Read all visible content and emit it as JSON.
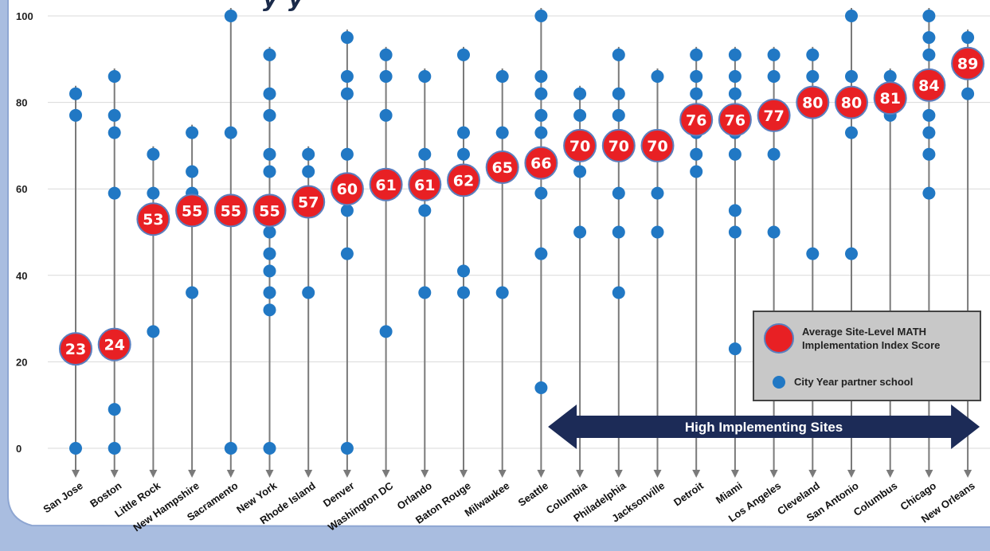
{
  "chart_data": {
    "type": "scatter",
    "title_fragment": "y y",
    "ylim": [
      0,
      100
    ],
    "yticks": [
      "0",
      "20",
      "40",
      "60",
      "80",
      "100"
    ],
    "grid": true,
    "categories": [
      "San Jose",
      "Boston",
      "Little Rock",
      "New Hampshire",
      "Sacramento",
      "New York",
      "Rhode Island",
      "Denver",
      "Washington DC",
      "Orlando",
      "Baton Rouge",
      "Milwaukee",
      "Seattle",
      "Columbia",
      "Philadelphia",
      "Jacksonville",
      "Detroit",
      "Miami",
      "Los Angeles",
      "Cleveland",
      "San Antonio",
      "Columbus",
      "Chicago",
      "New Orleans"
    ],
    "series": [
      {
        "name": "Average Site-Level MATH Implementation Index Score",
        "values": [
          23,
          24,
          53,
          55,
          55,
          55,
          57,
          60,
          61,
          61,
          62,
          65,
          66,
          70,
          70,
          70,
          76,
          76,
          77,
          80,
          80,
          81,
          84,
          89
        ],
        "labels": [
          "23",
          "24",
          "53",
          "55",
          "55",
          "55",
          "57",
          "60",
          "61",
          "61",
          "62",
          "65",
          "66",
          "70",
          "70",
          "70",
          "76",
          "76",
          "77",
          "80",
          "80",
          "81",
          "84",
          "89"
        ]
      },
      {
        "name": "City Year partner school",
        "points": [
          [
            0,
            82
          ],
          [
            0,
            77
          ],
          [
            0,
            0
          ],
          [
            1,
            86
          ],
          [
            1,
            77
          ],
          [
            1,
            73
          ],
          [
            1,
            59
          ],
          [
            1,
            9
          ],
          [
            1,
            0
          ],
          [
            2,
            68
          ],
          [
            2,
            59
          ],
          [
            2,
            27
          ],
          [
            3,
            73
          ],
          [
            3,
            64
          ],
          [
            3,
            59
          ],
          [
            3,
            36
          ],
          [
            4,
            100
          ],
          [
            4,
            73
          ],
          [
            4,
            0
          ],
          [
            5,
            91
          ],
          [
            5,
            82
          ],
          [
            5,
            77
          ],
          [
            5,
            68
          ],
          [
            5,
            64
          ],
          [
            5,
            50
          ],
          [
            5,
            45
          ],
          [
            5,
            41
          ],
          [
            5,
            36
          ],
          [
            5,
            32
          ],
          [
            5,
            0
          ],
          [
            6,
            68
          ],
          [
            6,
            64
          ],
          [
            6,
            36
          ],
          [
            7,
            95
          ],
          [
            7,
            86
          ],
          [
            7,
            82
          ],
          [
            7,
            68
          ],
          [
            7,
            55
          ],
          [
            7,
            45
          ],
          [
            7,
            0
          ],
          [
            8,
            91
          ],
          [
            8,
            86
          ],
          [
            8,
            77
          ],
          [
            8,
            27
          ],
          [
            9,
            86
          ],
          [
            9,
            68
          ],
          [
            9,
            55
          ],
          [
            9,
            36
          ],
          [
            10,
            91
          ],
          [
            10,
            73
          ],
          [
            10,
            68
          ],
          [
            10,
            41
          ],
          [
            10,
            36
          ],
          [
            11,
            86
          ],
          [
            11,
            73
          ],
          [
            11,
            36
          ],
          [
            12,
            100
          ],
          [
            12,
            86
          ],
          [
            12,
            82
          ],
          [
            12,
            77
          ],
          [
            12,
            73
          ],
          [
            12,
            59
          ],
          [
            12,
            45
          ],
          [
            12,
            14
          ],
          [
            13,
            82
          ],
          [
            13,
            77
          ],
          [
            13,
            64
          ],
          [
            13,
            50
          ],
          [
            14,
            91
          ],
          [
            14,
            82
          ],
          [
            14,
            77
          ],
          [
            14,
            59
          ],
          [
            14,
            50
          ],
          [
            14,
            36
          ],
          [
            15,
            86
          ],
          [
            15,
            59
          ],
          [
            15,
            50
          ],
          [
            16,
            91
          ],
          [
            16,
            86
          ],
          [
            16,
            82
          ],
          [
            16,
            73
          ],
          [
            16,
            68
          ],
          [
            16,
            64
          ],
          [
            17,
            91
          ],
          [
            17,
            86
          ],
          [
            17,
            82
          ],
          [
            17,
            73
          ],
          [
            17,
            68
          ],
          [
            17,
            55
          ],
          [
            17,
            50
          ],
          [
            17,
            23
          ],
          [
            18,
            91
          ],
          [
            18,
            86
          ],
          [
            18,
            68
          ],
          [
            18,
            50
          ],
          [
            19,
            91
          ],
          [
            19,
            86
          ],
          [
            19,
            45
          ],
          [
            20,
            100
          ],
          [
            20,
            86
          ],
          [
            20,
            73
          ],
          [
            20,
            45
          ],
          [
            21,
            86
          ],
          [
            21,
            77
          ],
          [
            22,
            100
          ],
          [
            22,
            95
          ],
          [
            22,
            91
          ],
          [
            22,
            77
          ],
          [
            22,
            73
          ],
          [
            22,
            68
          ],
          [
            22,
            59
          ],
          [
            23,
            95
          ],
          [
            23,
            82
          ]
        ]
      }
    ],
    "legend": {
      "position": "bottom-right",
      "items": [
        {
          "label": "Average Site-Level MATH Implementation Index Score",
          "color": "#e82024"
        },
        {
          "label": "City Year partner school",
          "color": "#2178c4"
        }
      ]
    },
    "annotation": {
      "text": "High Implementing Sites",
      "from_category": 13,
      "to_category": 23,
      "color": "#1c2b57"
    },
    "colors": {
      "stem": "#7a7a7a",
      "partner": "#2178c4",
      "average_fill": "#e82024",
      "average_stroke": "#5a7fbf",
      "grid": "#d9d9d9",
      "frame": "#a9bde0"
    }
  }
}
